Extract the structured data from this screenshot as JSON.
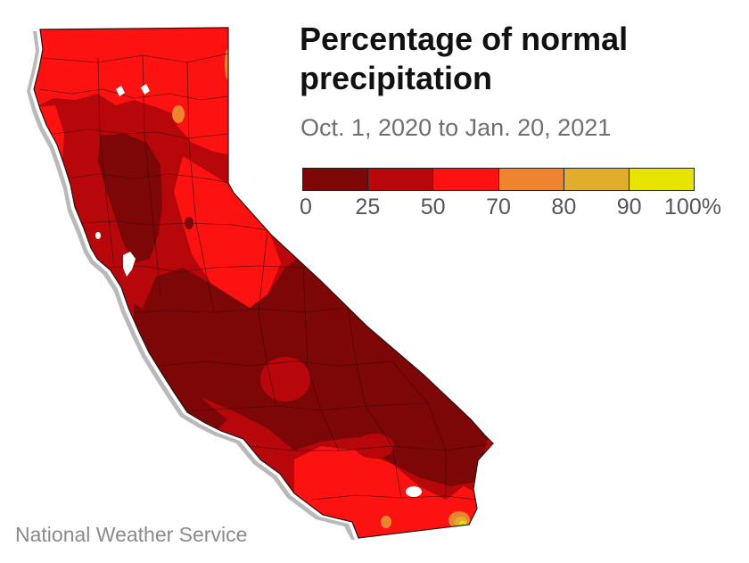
{
  "title": "Percentage of normal precipitation",
  "subtitle": "Oct. 1, 2020 to Jan. 20, 2021",
  "source": "National Weather Service",
  "legend": {
    "bins": [
      {
        "from": 0,
        "to": 25,
        "color": "#7d0606"
      },
      {
        "from": 25,
        "to": 50,
        "color": "#b8070a"
      },
      {
        "from": 50,
        "to": 70,
        "color": "#fd1212"
      },
      {
        "from": 70,
        "to": 80,
        "color": "#ee8430"
      },
      {
        "from": 80,
        "to": 90,
        "color": "#e0ad2c"
      },
      {
        "from": 90,
        "to": 100,
        "color": "#e6e400"
      }
    ],
    "ticks": [
      "0",
      "25",
      "50",
      "70",
      "80",
      "90",
      "100%"
    ]
  },
  "map": {
    "region": "California",
    "colors": {
      "boundary": "#2a1010",
      "coast_shadow": "#9a9a9a",
      "water": "#ffffff",
      "peak": "#6cc04a"
    }
  }
}
